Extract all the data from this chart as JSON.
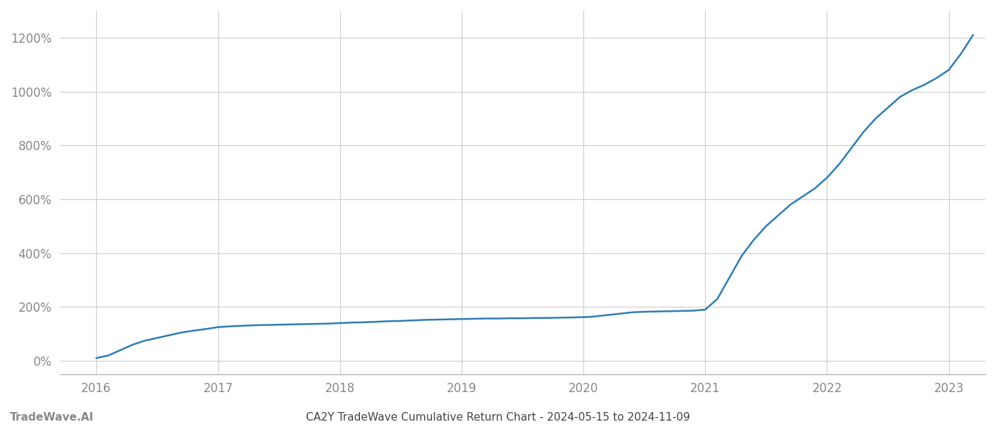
{
  "title": "CA2Y TradeWave Cumulative Return Chart - 2024-05-15 to 2024-11-09",
  "watermark": "TradeWave.AI",
  "line_color": "#2e7db5",
  "line_width": 1.8,
  "background_color": "#ffffff",
  "grid_color": "#cccccc",
  "x_years": [
    2016,
    2017,
    2018,
    2019,
    2020,
    2021,
    2022,
    2023
  ],
  "y_ticks": [
    0,
    200,
    400,
    600,
    800,
    1000,
    1200
  ],
  "xlim": [
    2015.7,
    2023.3
  ],
  "ylim": [
    -50,
    1300
  ],
  "data_x": [
    2016.0,
    2016.1,
    2016.2,
    2016.3,
    2016.4,
    2016.5,
    2016.6,
    2016.7,
    2016.8,
    2016.9,
    2017.0,
    2017.1,
    2017.2,
    2017.3,
    2017.4,
    2017.5,
    2017.6,
    2017.7,
    2017.8,
    2017.9,
    2018.0,
    2018.1,
    2018.2,
    2018.3,
    2018.4,
    2018.5,
    2018.6,
    2018.7,
    2018.8,
    2018.9,
    2019.0,
    2019.1,
    2019.2,
    2019.3,
    2019.4,
    2019.5,
    2019.6,
    2019.7,
    2019.8,
    2019.9,
    2020.0,
    2020.05,
    2020.1,
    2020.2,
    2020.3,
    2020.4,
    2020.5,
    2020.6,
    2020.7,
    2020.8,
    2020.9,
    2021.0,
    2021.1,
    2021.2,
    2021.3,
    2021.4,
    2021.5,
    2021.6,
    2021.7,
    2021.8,
    2021.9,
    2022.0,
    2022.1,
    2022.2,
    2022.3,
    2022.4,
    2022.5,
    2022.6,
    2022.7,
    2022.8,
    2022.9,
    2023.0,
    2023.1,
    2023.2
  ],
  "data_y": [
    10,
    20,
    40,
    60,
    75,
    85,
    95,
    105,
    112,
    118,
    125,
    128,
    130,
    132,
    133,
    134,
    135,
    136,
    137,
    138,
    140,
    142,
    143,
    145,
    147,
    148,
    150,
    152,
    153,
    154,
    155,
    156,
    157,
    157,
    158,
    158,
    159,
    159,
    160,
    161,
    162,
    163,
    165,
    170,
    175,
    180,
    182,
    183,
    184,
    185,
    186,
    190,
    230,
    310,
    390,
    450,
    500,
    540,
    580,
    610,
    640,
    680,
    730,
    790,
    850,
    900,
    940,
    980,
    1005,
    1025,
    1050,
    1080,
    1140,
    1210
  ],
  "title_fontsize": 11,
  "tick_fontsize": 12,
  "watermark_fontsize": 11,
  "axis_label_color": "#888888",
  "title_color": "#444444"
}
